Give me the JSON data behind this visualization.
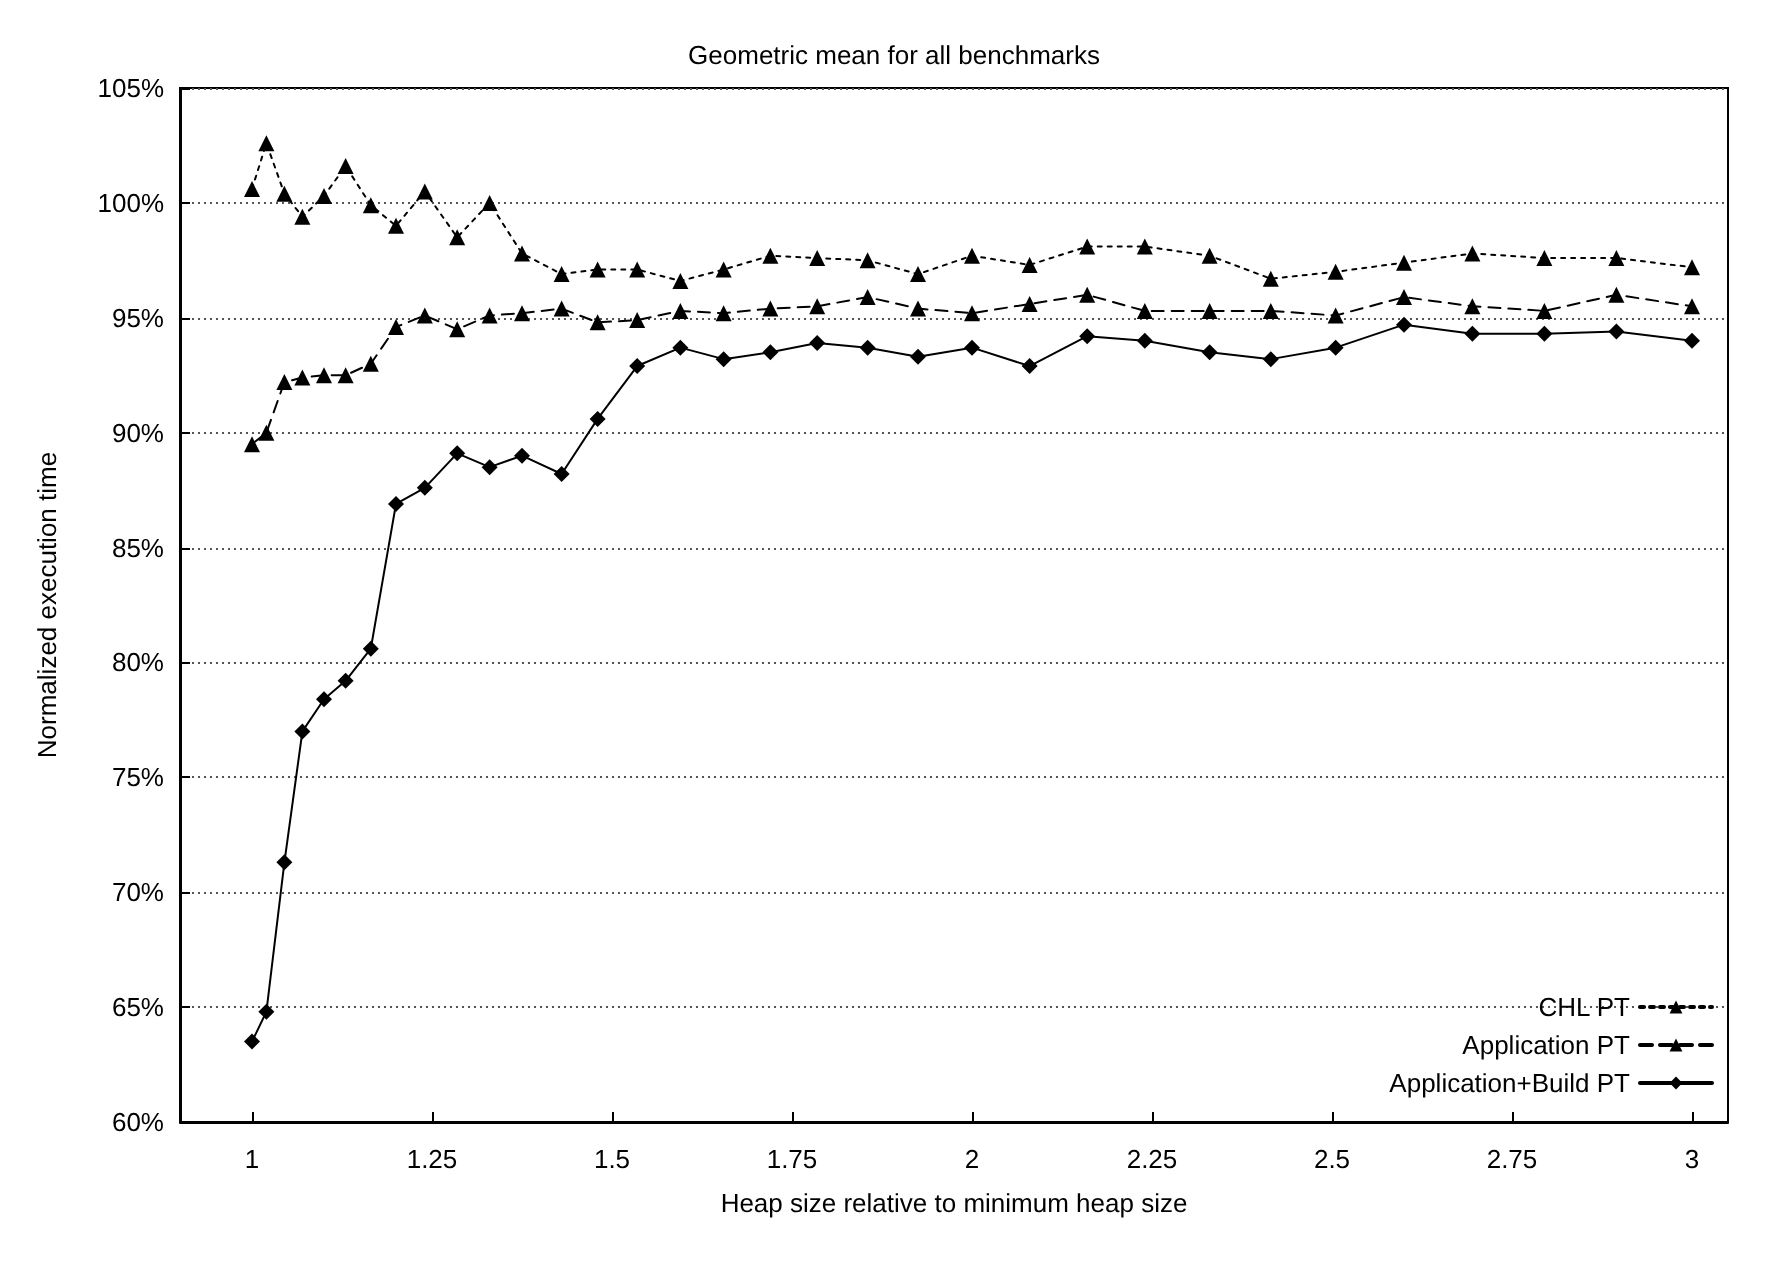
{
  "chart_data": {
    "type": "line",
    "title": "Geometric mean for all benchmarks",
    "xlabel": "Heap size relative to minimum heap size",
    "ylabel": "Normalized execution time",
    "x": [
      1,
      1.02,
      1.045,
      1.07,
      1.1,
      1.13,
      1.165,
      1.2,
      1.24,
      1.285,
      1.33,
      1.375,
      1.43,
      1.48,
      1.535,
      1.595,
      1.655,
      1.72,
      1.785,
      1.855,
      1.925,
      2.0,
      2.08,
      2.16,
      2.24,
      2.33,
      2.415,
      2.505,
      2.6,
      2.695,
      2.795,
      2.895,
      3.0
    ],
    "series": [
      {
        "name": "CHL PT",
        "color": "#000000",
        "marker": "triangle",
        "line_style": "dotted",
        "values": [
          100.6,
          102.6,
          100.4,
          99.4,
          100.3,
          101.6,
          99.9,
          99.0,
          100.5,
          98.5,
          100.0,
          97.8,
          96.9,
          97.1,
          97.1,
          96.6,
          97.1,
          97.7,
          97.6,
          97.5,
          96.9,
          97.7,
          97.3,
          98.1,
          98.1,
          97.7,
          96.7,
          97.0,
          97.4,
          97.8,
          97.6,
          97.6,
          97.2
        ]
      },
      {
        "name": "Application PT",
        "color": "#000000",
        "marker": "triangle",
        "line_style": "dashed",
        "values": [
          89.5,
          90.0,
          92.2,
          92.4,
          92.5,
          92.5,
          93.0,
          94.6,
          95.1,
          94.5,
          95.1,
          95.2,
          95.4,
          94.8,
          94.9,
          95.3,
          95.2,
          95.4,
          95.5,
          95.9,
          95.4,
          95.2,
          95.6,
          96.0,
          95.3,
          95.3,
          95.3,
          95.1,
          95.9,
          95.5,
          95.3,
          96.0,
          95.5
        ]
      },
      {
        "name": "Application+Build PT",
        "color": "#000000",
        "marker": "diamond",
        "line_style": "solid",
        "values": [
          63.5,
          64.8,
          71.3,
          77.0,
          78.4,
          79.2,
          80.6,
          86.9,
          87.6,
          89.1,
          88.5,
          89.0,
          88.2,
          90.6,
          92.9,
          93.7,
          93.2,
          93.5,
          93.9,
          93.7,
          93.3,
          93.7,
          92.9,
          94.2,
          94.0,
          93.5,
          93.2,
          93.7,
          94.7,
          94.3,
          94.3,
          94.4,
          94.0
        ]
      }
    ],
    "xlim": [
      0.9,
      3.05
    ],
    "xticks": [
      1,
      1.25,
      1.5,
      1.75,
      2,
      2.25,
      2.5,
      2.75,
      3
    ],
    "ylim": [
      60,
      105
    ],
    "yticks": [
      {
        "value": 60,
        "label": "60%"
      },
      {
        "value": 65,
        "label": "65%"
      },
      {
        "value": 70,
        "label": "70%"
      },
      {
        "value": 75,
        "label": "75%"
      },
      {
        "value": 80,
        "label": "80%"
      },
      {
        "value": 85,
        "label": "85%"
      },
      {
        "value": 90,
        "label": "90%"
      },
      {
        "value": 95,
        "label": "95%"
      },
      {
        "value": 100,
        "label": "100%"
      },
      {
        "value": 105,
        "label": "105%"
      }
    ],
    "grid": "y",
    "legend": "bottom right"
  }
}
